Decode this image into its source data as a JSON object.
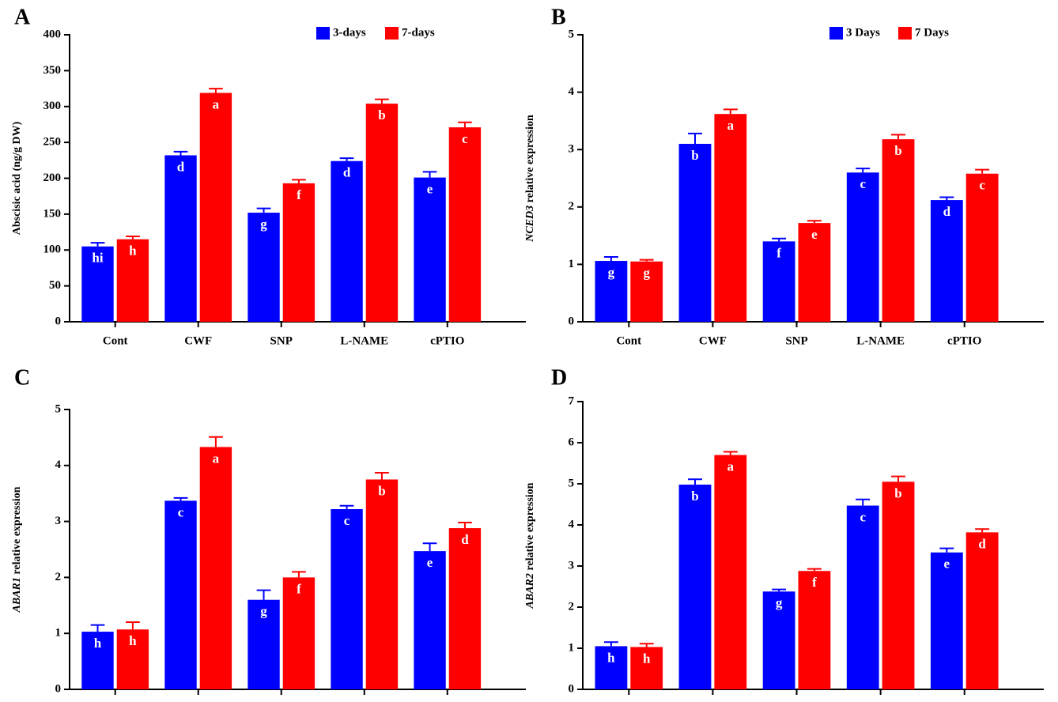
{
  "chart_data": [
    {
      "type": "bar",
      "panel": "A",
      "ylabel": "Abscisic acid (ng/g DW)",
      "categories": [
        "Cont",
        "CWF",
        "SNP",
        "L-NAME",
        "cPTIO"
      ],
      "ylim": [
        0,
        400
      ],
      "yticks": [
        0,
        50,
        100,
        150,
        200,
        250,
        300,
        350,
        400
      ],
      "legend": "upper right",
      "series": [
        {
          "name": "3-days",
          "color": "#0000ff",
          "values": [
            105,
            232,
            152,
            224,
            201
          ],
          "errors": [
            5,
            5,
            6,
            4,
            8
          ],
          "letters": [
            "hi",
            "d",
            "g",
            "d",
            "e"
          ]
        },
        {
          "name": "7-days",
          "color": "#ff0000",
          "values": [
            115,
            319,
            193,
            304,
            271
          ],
          "errors": [
            4,
            6,
            5,
            6,
            7
          ],
          "letters": [
            "h",
            "a",
            "f",
            "b",
            "c"
          ]
        }
      ]
    },
    {
      "type": "bar",
      "panel": "B",
      "ylabel_gene": "NCED3",
      "ylabel": "relative expression",
      "categories": [
        "Cont",
        "CWF",
        "SNP",
        "L-NAME",
        "cPTIO"
      ],
      "ylim": [
        0,
        5
      ],
      "yticks": [
        0,
        1,
        2,
        3,
        4,
        5
      ],
      "legend": "upper right",
      "series": [
        {
          "name": "3 Days",
          "color": "#0000ff",
          "values": [
            1.06,
            3.1,
            1.4,
            2.6,
            2.12
          ],
          "errors": [
            0.07,
            0.18,
            0.05,
            0.07,
            0.05
          ],
          "letters": [
            "g",
            "b",
            "f",
            "c",
            "d"
          ]
        },
        {
          "name": "7 Days",
          "color": "#ff0000",
          "values": [
            1.05,
            3.62,
            1.72,
            3.18,
            2.58
          ],
          "errors": [
            0.03,
            0.08,
            0.04,
            0.08,
            0.07
          ],
          "letters": [
            "g",
            "a",
            "e",
            "b",
            "c"
          ]
        }
      ]
    },
    {
      "type": "bar",
      "panel": "C",
      "ylabel_gene": "ABAR1",
      "ylabel": "relative expression",
      "categories": [
        null,
        null,
        null,
        null,
        null
      ],
      "ylim": [
        0,
        5
      ],
      "yticks": [
        0,
        1,
        2,
        3,
        4,
        5
      ],
      "series": [
        {
          "color": "#0000ff",
          "values": [
            1.03,
            3.37,
            1.6,
            3.22,
            2.47
          ],
          "errors": [
            0.12,
            0.05,
            0.17,
            0.06,
            0.14
          ],
          "letters": [
            "h",
            "c",
            "g",
            "c",
            "e"
          ]
        },
        {
          "color": "#ff0000",
          "values": [
            1.07,
            4.33,
            2.0,
            3.75,
            2.88
          ],
          "errors": [
            0.13,
            0.18,
            0.1,
            0.12,
            0.1
          ],
          "letters": [
            "h",
            "a",
            "f",
            "b",
            "d"
          ]
        }
      ]
    },
    {
      "type": "bar",
      "panel": "D",
      "ylabel_gene": "ABAR2",
      "ylabel": "relative expression",
      "categories": [
        null,
        null,
        null,
        null,
        null
      ],
      "ylim": [
        0,
        7
      ],
      "yticks": [
        0,
        1,
        2,
        3,
        4,
        5,
        6,
        7
      ],
      "series": [
        {
          "color": "#0000ff",
          "values": [
            1.05,
            4.98,
            2.38,
            4.47,
            3.33
          ],
          "errors": [
            0.1,
            0.13,
            0.05,
            0.15,
            0.1
          ],
          "letters": [
            "h",
            "b",
            "g",
            "c",
            "e"
          ]
        },
        {
          "color": "#ff0000",
          "values": [
            1.03,
            5.7,
            2.88,
            5.05,
            3.82
          ],
          "errors": [
            0.08,
            0.08,
            0.05,
            0.13,
            0.08
          ],
          "letters": [
            "h",
            "a",
            "f",
            "b",
            "d"
          ]
        }
      ]
    }
  ]
}
